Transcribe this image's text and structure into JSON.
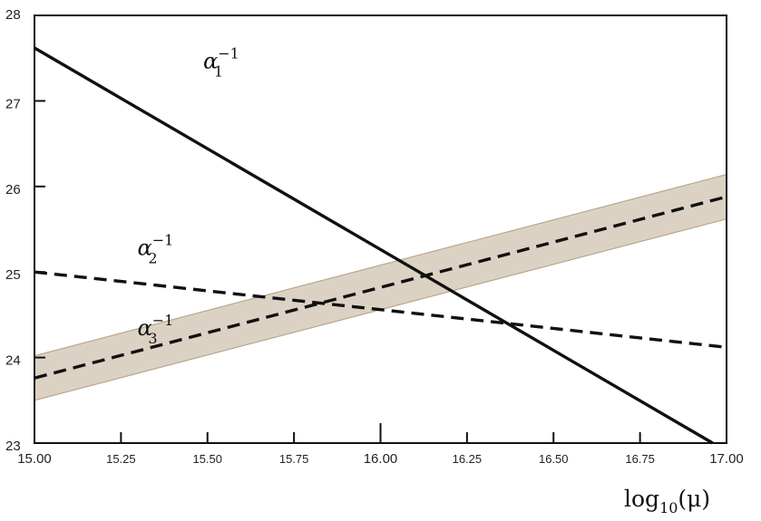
{
  "chart_data": {
    "type": "line",
    "xlabel_base": "log",
    "xlabel_sub": "10",
    "xlabel_arg": "(μ)",
    "xlim": [
      15.0,
      17.0
    ],
    "ylim": [
      23,
      28
    ],
    "x_ticks": [
      {
        "value": 15.0,
        "label": "15.00",
        "major": true
      },
      {
        "value": 15.25,
        "label": "15.25",
        "major": false
      },
      {
        "value": 15.5,
        "label": "15.50",
        "major": false
      },
      {
        "value": 15.75,
        "label": "15.75",
        "major": false
      },
      {
        "value": 16.0,
        "label": "16.00",
        "major": true
      },
      {
        "value": 16.25,
        "label": "16.25",
        "major": false
      },
      {
        "value": 16.5,
        "label": "16.50",
        "major": false
      },
      {
        "value": 16.75,
        "label": "16.75",
        "major": false
      },
      {
        "value": 17.0,
        "label": "17.00",
        "major": true
      }
    ],
    "y_ticks": [
      {
        "value": 23,
        "label": "23"
      },
      {
        "value": 24,
        "label": "24"
      },
      {
        "value": 25,
        "label": "25"
      },
      {
        "value": 26,
        "label": "26"
      },
      {
        "value": 27,
        "label": "27"
      },
      {
        "value": 28,
        "label": "28"
      }
    ],
    "grid": false,
    "series": [
      {
        "name": "α",
        "sub": "1",
        "sup": "−1",
        "style": "solid",
        "color": "#111111",
        "x": [
          15.0,
          16.96
        ],
        "y": [
          27.62,
          23.0
        ],
        "label_at": [
          15.54,
          27.38
        ]
      },
      {
        "name": "α",
        "sub": "2",
        "sup": "−1",
        "style": "dashed",
        "color": "#111111",
        "x": [
          15.0,
          17.0
        ],
        "y": [
          25.0,
          24.12
        ],
        "label_at": [
          15.35,
          25.2
        ]
      },
      {
        "name": "α",
        "sub": "3",
        "sup": "−1",
        "style": "dashed",
        "color": "#111111",
        "x": [
          15.0,
          17.0
        ],
        "y": [
          23.76,
          25.88
        ],
        "band": {
          "lower": [
            23.5,
            25.62
          ],
          "upper": [
            24.02,
            26.14
          ]
        },
        "label_at": [
          15.35,
          24.26
        ]
      }
    ],
    "band_fill": "#dcd2c3",
    "band_edge": "#b9a68e"
  }
}
